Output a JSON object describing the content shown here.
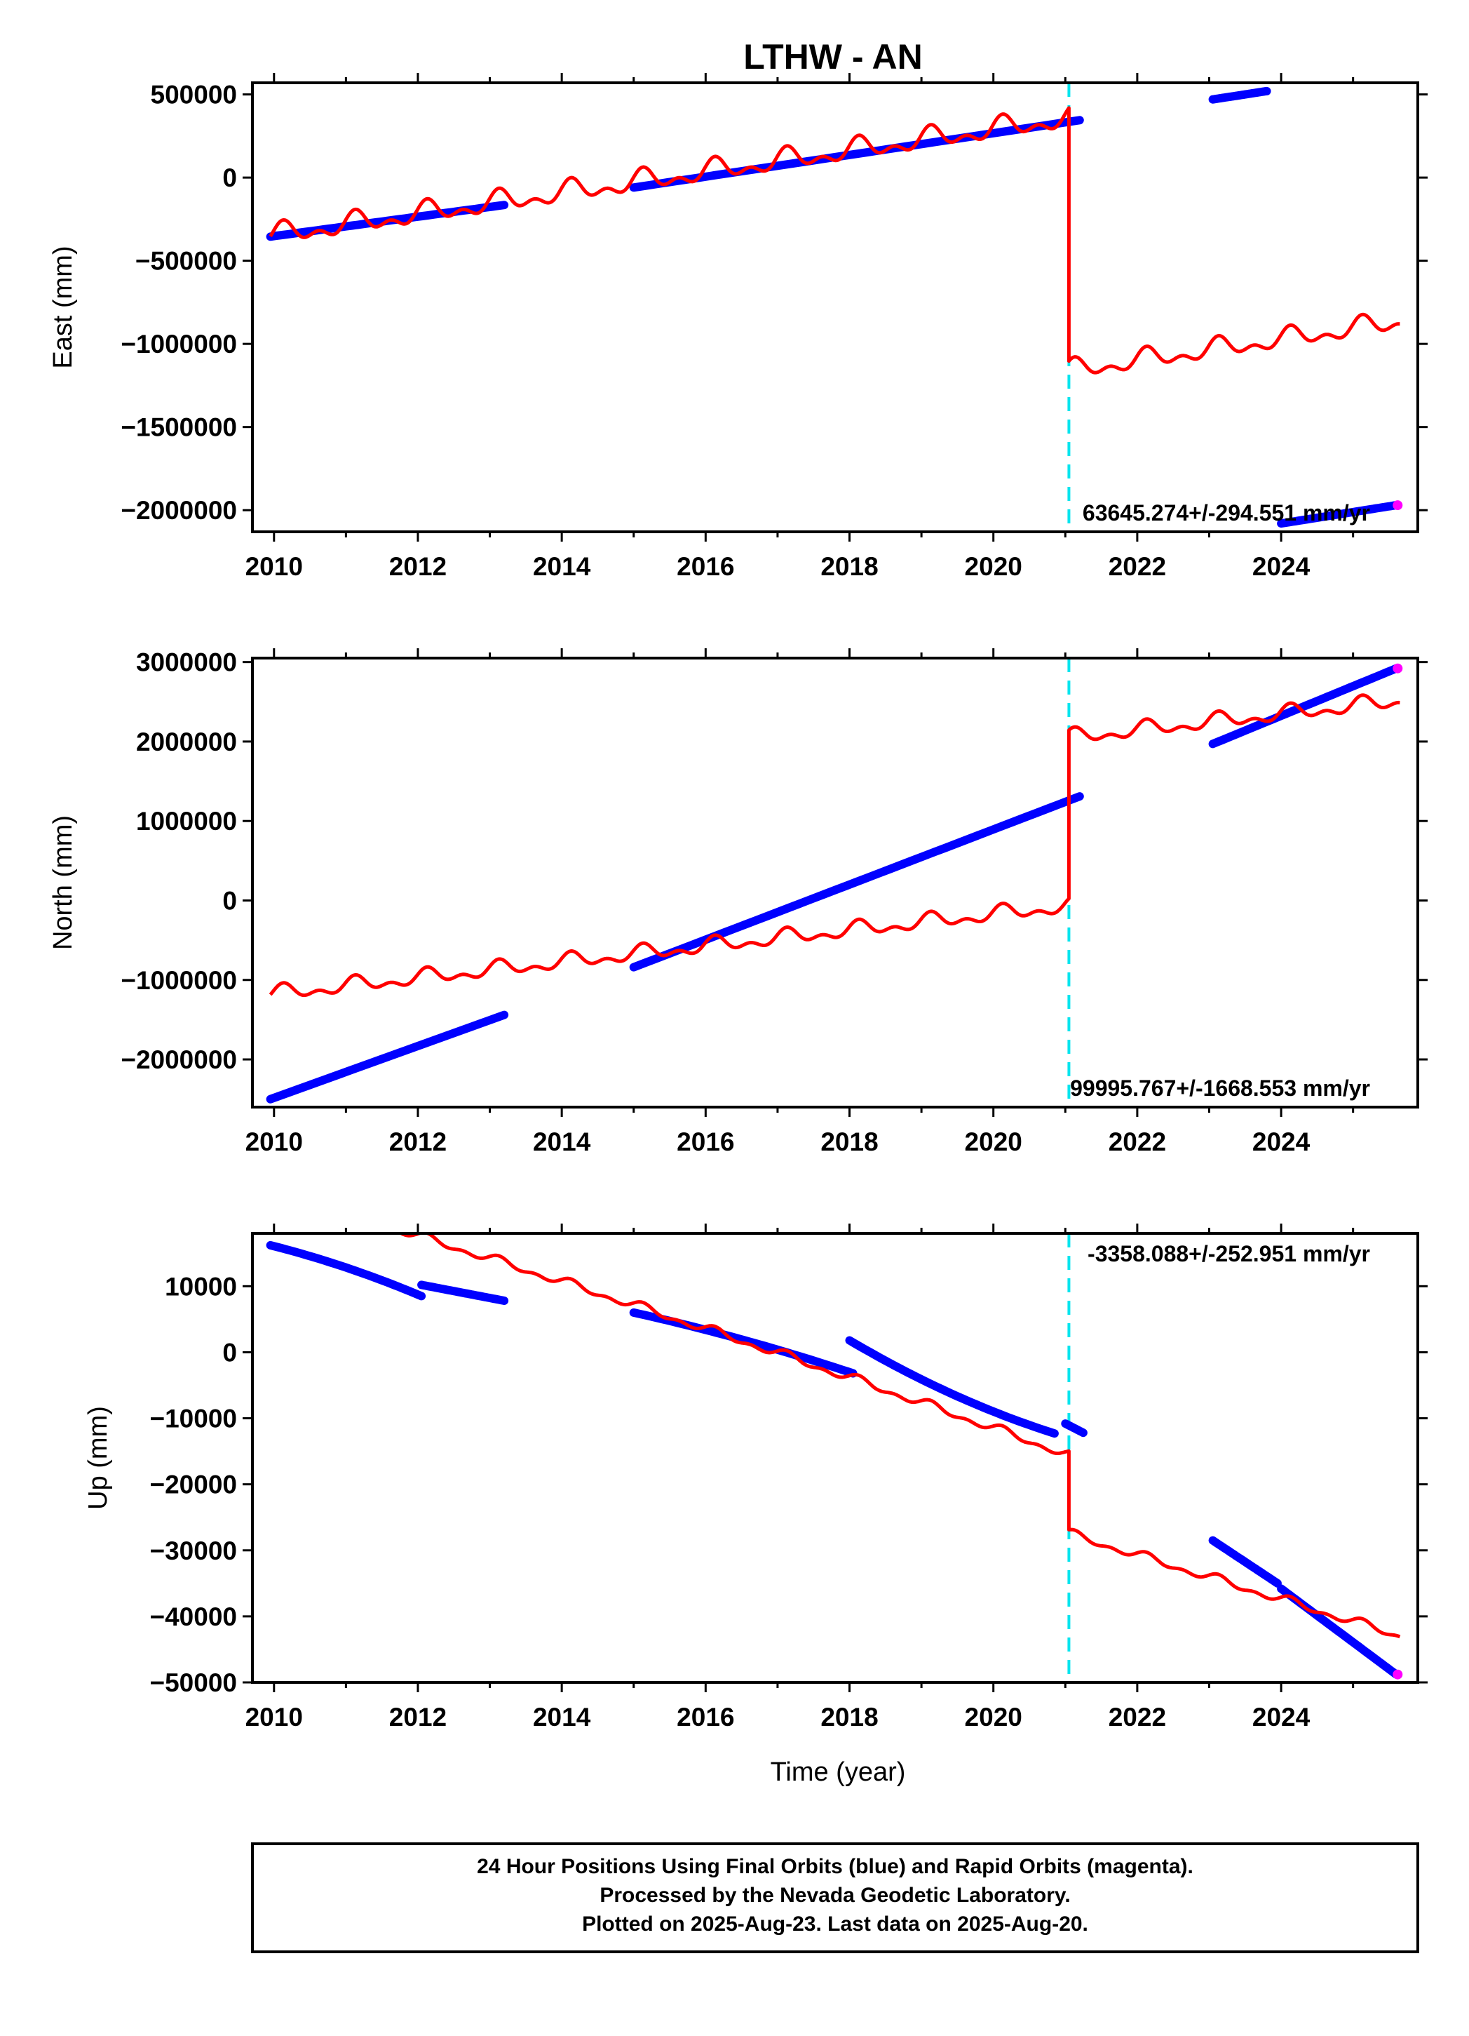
{
  "title": "LTHW - AN",
  "footer": {
    "lines": [
      "24 Hour Positions Using Final Orbits (blue) and Rapid Orbits (magenta).",
      "Processed by the Nevada Geodetic Laboratory.",
      "Plotted on 2025-Aug-23. Last data on 2025-Aug-20."
    ]
  },
  "colors": {
    "final_orbits": "#0000ff",
    "rapid_orbits": "#ff00ff",
    "model": "#ff0000",
    "event_line": "#00e5ee"
  },
  "chart_data": [
    {
      "type": "line",
      "ylabel": "East (mm)",
      "xlabel": "",
      "xlim": [
        2009.7,
        2025.9
      ],
      "ylim": [
        -2130000,
        570000
      ],
      "xticks": [
        2010,
        2012,
        2014,
        2016,
        2018,
        2020,
        2022,
        2024
      ],
      "yticks": [
        500000,
        0,
        -500000,
        -1000000,
        -1500000,
        -2000000
      ],
      "ytick_labels": [
        "500000",
        "0",
        "−500000",
        "−1000000",
        "−1500000",
        "−2000000"
      ],
      "rate_label": "63645.274+/-294.551 mm/yr",
      "rate_label_position": "bottom-right",
      "event_x": 2021.05,
      "blue_segments": [
        {
          "x": [
            2009.95,
            2013.2
          ],
          "y": [
            -355000,
            -165000
          ]
        },
        {
          "x": [
            2015.0,
            2021.2
          ],
          "y": [
            -60000,
            345000
          ]
        },
        {
          "x": [
            2023.05,
            2023.8
          ],
          "y": [
            470000,
            520000
          ]
        },
        {
          "x": [
            2024.0,
            2025.6
          ],
          "y": [
            -2080000,
            -1970000
          ]
        }
      ],
      "rapid_points": [
        {
          "x": 2025.62,
          "y": -1970000
        }
      ],
      "model": [
        {
          "x0": 2009.95,
          "x1": 2021.05,
          "y0": -350000,
          "slope": 63645,
          "amp": 60000
        },
        {
          "x0": 2021.05,
          "x1": 2025.65,
          "y0": -1160000,
          "slope": 63645,
          "amp": 55000
        }
      ]
    },
    {
      "type": "line",
      "ylabel": "North (mm)",
      "xlabel": "",
      "xlim": [
        2009.7,
        2025.9
      ],
      "ylim": [
        -2600000,
        3050000
      ],
      "xticks": [
        2010,
        2012,
        2014,
        2016,
        2018,
        2020,
        2022,
        2024
      ],
      "yticks": [
        3000000,
        2000000,
        1000000,
        0,
        -1000000,
        -2000000
      ],
      "ytick_labels": [
        "3000000",
        "2000000",
        "1000000",
        "0",
        "−1000000",
        "−2000000"
      ],
      "rate_label": "99995.767+/-1668.553 mm/yr",
      "rate_label_position": "bottom-right",
      "event_x": 2021.05,
      "blue_segments": [
        {
          "x": [
            2009.95,
            2013.2
          ],
          "y": [
            -2500000,
            -1440000
          ]
        },
        {
          "x": [
            2015.0,
            2021.2
          ],
          "y": [
            -840000,
            1310000
          ]
        },
        {
          "x": [
            2023.05,
            2025.6
          ],
          "y": [
            1970000,
            2920000
          ]
        }
      ],
      "rapid_points": [
        {
          "x": 2025.62,
          "y": 2920000
        }
      ],
      "model": [
        {
          "x0": 2009.95,
          "x1": 2021.05,
          "y0": -1180000,
          "slope": 100000,
          "amp": 90000
        },
        {
          "x0": 2021.05,
          "x1": 2025.65,
          "y0": 2050000,
          "slope": 100000,
          "amp": 90000
        }
      ]
    },
    {
      "type": "line",
      "ylabel": "Up (mm)",
      "xlabel": "Time (year)",
      "xlim": [
        2009.7,
        2025.9
      ],
      "ylim": [
        -50000,
        18000
      ],
      "xticks": [
        2010,
        2012,
        2014,
        2016,
        2018,
        2020,
        2022,
        2024
      ],
      "yticks": [
        10000,
        0,
        -10000,
        -20000,
        -30000,
        -40000,
        -50000
      ],
      "ytick_labels": [
        "10000",
        "0",
        "−10000",
        "−20000",
        "−30000",
        "−40000",
        "−50000"
      ],
      "rate_label": "-3358.088+/-252.951 mm/yr",
      "rate_label_position": "top-right",
      "event_x": 2021.05,
      "blue_segments": [
        {
          "x": [
            2009.95,
            2012.05
          ],
          "y": [
            16200,
            8500
          ],
          "curve": 0.25
        },
        {
          "x": [
            2012.05,
            2013.2
          ],
          "y": [
            10200,
            7800
          ]
        },
        {
          "x": [
            2015.0,
            2018.05
          ],
          "y": [
            6000,
            -3200
          ],
          "curve": 0.2
        },
        {
          "x": [
            2018.0,
            2020.85
          ],
          "y": [
            1800,
            -12300
          ],
          "curve": -0.3
        },
        {
          "x": [
            2021.0,
            2021.25
          ],
          "y": [
            -10800,
            -12200
          ]
        },
        {
          "x": [
            2023.05,
            2023.95
          ],
          "y": [
            -28500,
            -35000
          ]
        },
        {
          "x": [
            2024.0,
            2025.6
          ],
          "y": [
            -35800,
            -48800
          ]
        }
      ],
      "rapid_points": [
        {
          "x": 2025.62,
          "y": -48800
        }
      ],
      "model": [
        {
          "x0": 2011.3,
          "x1": 2021.05,
          "y0": 20000,
          "slope": -3358,
          "amp": 600,
          "curve": 600
        },
        {
          "x0": 2021.05,
          "x1": 2025.65,
          "y0": -27500,
          "slope": -3358,
          "amp": 600
        }
      ]
    }
  ]
}
